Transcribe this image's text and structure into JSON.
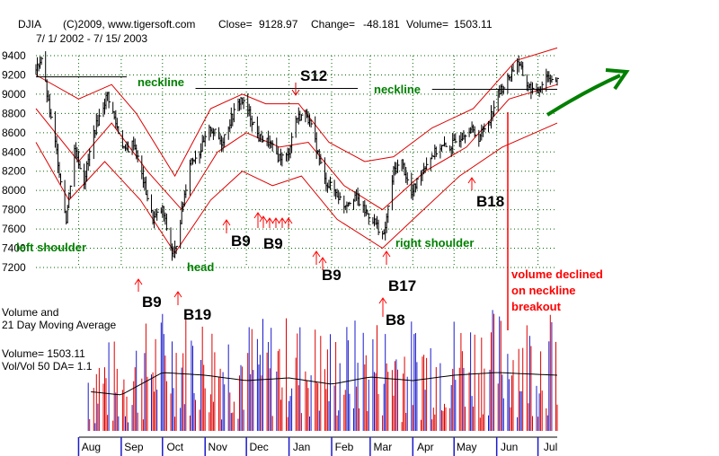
{
  "header": {
    "symbol": "DJIA",
    "copyright": "(C)2009, www.tigersoft.com",
    "close_label": "Close=",
    "close_value": "9128.97",
    "change_label": "Change=",
    "change_value": "-48.181",
    "volume_label": "Volume=",
    "volume_value": "1503.11",
    "date_range": "7/ 1/ 2002 - 7/ 15/ 2003"
  },
  "volume_panel": {
    "title_line1": "Volume and",
    "title_line2": "21 Day Moving Average",
    "volume_readout": "Volume= 1503.11",
    "ratio_readout": "Vol/Vol 50 DA= 1.1"
  },
  "colors": {
    "price_bars": "#000000",
    "bands": "#dd0000",
    "annotation_green": "#008000",
    "signal_red": "#ff0000",
    "volume_red": "#dd0000",
    "volume_blue": "#1a1acc",
    "grid": "#006600"
  },
  "chart_data": {
    "type": "bar",
    "subtype": "ohlc-price-with-volume",
    "title": "DJIA",
    "x_range": [
      "2002-07-01",
      "2003-07-15"
    ],
    "ylim": [
      7100,
      9550
    ],
    "y_ticks": [
      7200,
      7400,
      7600,
      7800,
      8000,
      8200,
      8400,
      8600,
      8800,
      9000,
      9200,
      9400
    ],
    "month_labels": [
      "Aug",
      "Sep",
      "Oct",
      "Nov",
      "Dec",
      "Jan",
      "Feb",
      "Mar",
      "Apr",
      "May",
      "Jun",
      "Jul"
    ],
    "grid": true,
    "price_anchors": [
      {
        "date": "2002-07-01",
        "close": 9250
      },
      {
        "date": "2002-07-05",
        "close": 9380
      },
      {
        "date": "2002-07-10",
        "close": 8900
      },
      {
        "date": "2002-07-16",
        "close": 8400
      },
      {
        "date": "2002-07-23",
        "close": 7700
      },
      {
        "date": "2002-07-29",
        "close": 8450
      },
      {
        "date": "2002-08-05",
        "close": 8100
      },
      {
        "date": "2002-08-12",
        "close": 8600
      },
      {
        "date": "2002-08-22",
        "close": 9000
      },
      {
        "date": "2002-08-28",
        "close": 8700
      },
      {
        "date": "2002-09-04",
        "close": 8400
      },
      {
        "date": "2002-09-10",
        "close": 8500
      },
      {
        "date": "2002-09-17",
        "close": 8100
      },
      {
        "date": "2002-09-24",
        "close": 7700
      },
      {
        "date": "2002-10-01",
        "close": 7800
      },
      {
        "date": "2002-10-09",
        "close": 7290
      },
      {
        "date": "2002-10-14",
        "close": 7700
      },
      {
        "date": "2002-10-21",
        "close": 8300
      },
      {
        "date": "2002-10-28",
        "close": 8400
      },
      {
        "date": "2002-11-05",
        "close": 8650
      },
      {
        "date": "2002-11-13",
        "close": 8500
      },
      {
        "date": "2002-11-20",
        "close": 8750
      },
      {
        "date": "2002-11-27",
        "close": 8950
      },
      {
        "date": "2002-12-03",
        "close": 8800
      },
      {
        "date": "2002-12-10",
        "close": 8550
      },
      {
        "date": "2002-12-17",
        "close": 8500
      },
      {
        "date": "2002-12-24",
        "close": 8350
      },
      {
        "date": "2002-12-31",
        "close": 8350
      },
      {
        "date": "2003-01-06",
        "close": 8750
      },
      {
        "date": "2003-01-14",
        "close": 8800
      },
      {
        "date": "2003-01-20",
        "close": 8500
      },
      {
        "date": "2003-01-27",
        "close": 8100
      },
      {
        "date": "2003-02-03",
        "close": 8000
      },
      {
        "date": "2003-02-10",
        "close": 7850
      },
      {
        "date": "2003-02-18",
        "close": 7950
      },
      {
        "date": "2003-02-24",
        "close": 7800
      },
      {
        "date": "2003-03-03",
        "close": 7700
      },
      {
        "date": "2003-03-11",
        "close": 7520
      },
      {
        "date": "2003-03-18",
        "close": 8200
      },
      {
        "date": "2003-03-24",
        "close": 8300
      },
      {
        "date": "2003-03-31",
        "close": 7950
      },
      {
        "date": "2003-04-07",
        "close": 8200
      },
      {
        "date": "2003-04-14",
        "close": 8350
      },
      {
        "date": "2003-04-21",
        "close": 8450
      },
      {
        "date": "2003-04-28",
        "close": 8450
      },
      {
        "date": "2003-05-05",
        "close": 8550
      },
      {
        "date": "2003-05-12",
        "close": 8650
      },
      {
        "date": "2003-05-19",
        "close": 8550
      },
      {
        "date": "2003-05-27",
        "close": 8750
      },
      {
        "date": "2003-06-02",
        "close": 9000
      },
      {
        "date": "2003-06-09",
        "close": 9150
      },
      {
        "date": "2003-06-16",
        "close": 9350
      },
      {
        "date": "2003-06-23",
        "close": 9100
      },
      {
        "date": "2003-06-30",
        "close": 9000
      },
      {
        "date": "2003-07-07",
        "close": 9200
      },
      {
        "date": "2003-07-15",
        "close": 9129
      }
    ],
    "upper_band": [
      {
        "date": "2002-07-01",
        "value": 9200
      },
      {
        "date": "2002-08-01",
        "value": 8950
      },
      {
        "date": "2002-08-25",
        "value": 9100
      },
      {
        "date": "2002-09-12",
        "value": 8800
      },
      {
        "date": "2002-10-10",
        "value": 8150
      },
      {
        "date": "2002-11-05",
        "value": 8850
      },
      {
        "date": "2002-11-28",
        "value": 9000
      },
      {
        "date": "2002-12-15",
        "value": 8900
      },
      {
        "date": "2003-01-08",
        "value": 8900
      },
      {
        "date": "2003-01-30",
        "value": 8500
      },
      {
        "date": "2003-02-25",
        "value": 8300
      },
      {
        "date": "2003-03-18",
        "value": 8350
      },
      {
        "date": "2003-04-15",
        "value": 8650
      },
      {
        "date": "2003-05-15",
        "value": 8850
      },
      {
        "date": "2003-06-15",
        "value": 9350
      },
      {
        "date": "2003-07-15",
        "value": 9480
      }
    ],
    "lower_band": [
      {
        "date": "2002-07-01",
        "value": 8500
      },
      {
        "date": "2002-07-25",
        "value": 7900
      },
      {
        "date": "2002-08-20",
        "value": 8300
      },
      {
        "date": "2002-09-15",
        "value": 7900
      },
      {
        "date": "2002-10-10",
        "value": 7350
      },
      {
        "date": "2002-11-05",
        "value": 7900
      },
      {
        "date": "2002-11-28",
        "value": 8200
      },
      {
        "date": "2002-12-20",
        "value": 8050
      },
      {
        "date": "2003-01-10",
        "value": 8150
      },
      {
        "date": "2003-02-05",
        "value": 7700
      },
      {
        "date": "2003-03-10",
        "value": 7400
      },
      {
        "date": "2003-04-05",
        "value": 7750
      },
      {
        "date": "2003-05-05",
        "value": 8150
      },
      {
        "date": "2003-06-05",
        "value": 8450
      },
      {
        "date": "2003-07-15",
        "value": 8700
      }
    ],
    "middle_band": [
      {
        "date": "2002-07-01",
        "value": 8850
      },
      {
        "date": "2002-08-01",
        "value": 8300
      },
      {
        "date": "2002-08-25",
        "value": 8700
      },
      {
        "date": "2002-09-20",
        "value": 8200
      },
      {
        "date": "2002-10-15",
        "value": 7800
      },
      {
        "date": "2002-11-10",
        "value": 8400
      },
      {
        "date": "2002-12-01",
        "value": 8600
      },
      {
        "date": "2002-12-25",
        "value": 8450
      },
      {
        "date": "2003-01-15",
        "value": 8500
      },
      {
        "date": "2003-02-10",
        "value": 8050
      },
      {
        "date": "2003-03-10",
        "value": 7800
      },
      {
        "date": "2003-04-10",
        "value": 8200
      },
      {
        "date": "2003-05-10",
        "value": 8450
      },
      {
        "date": "2003-06-10",
        "value": 8950
      },
      {
        "date": "2003-07-15",
        "value": 9100
      }
    ],
    "necklines": [
      {
        "label": "neckline",
        "from": "2002-07-01",
        "to": "2002-09-05",
        "value": 9180
      },
      {
        "label": "",
        "from": "2002-10-25",
        "to": "2003-02-20",
        "value": 9060
      },
      {
        "label": "neckline",
        "from": "2003-04-15",
        "to": "2003-07-15",
        "value": 9050
      }
    ],
    "pattern_labels": [
      {
        "text": "left shoulder",
        "date": "2002-07-24",
        "value": 7600
      },
      {
        "text": "head",
        "date": "2002-10-10",
        "value": 7290
      },
      {
        "text": "right shoulder",
        "date": "2003-03-12",
        "value": 7520
      }
    ],
    "signals": [
      {
        "label": "S12",
        "date": "2003-01-02",
        "kind": "sell"
      },
      {
        "label": "B9",
        "date": "2002-09-03",
        "kind": "buy"
      },
      {
        "label": "B19",
        "date": "2002-10-01",
        "kind": "buy"
      },
      {
        "label": "B9",
        "date": "2002-11-15",
        "kind": "buy"
      },
      {
        "label": "B9",
        "date": "2002-12-05",
        "kind": "buy"
      },
      {
        "label": "B9",
        "date": "2003-01-10",
        "kind": "buy"
      },
      {
        "label": "B17",
        "date": "2003-02-27",
        "kind": "buy"
      },
      {
        "label": "B8",
        "date": "2003-02-25",
        "kind": "buy"
      },
      {
        "label": "B18",
        "date": "2003-05-01",
        "kind": "buy"
      }
    ],
    "annotations": [
      {
        "text": "volume declined",
        "color": "red"
      },
      {
        "text": "on neckline",
        "color": "red"
      },
      {
        "text": "breakout",
        "color": "red"
      }
    ],
    "volume": {
      "level_range": [
        1000,
        2600
      ],
      "ma_anchors": [
        {
          "date": "2002-07-01",
          "value": 1580
        },
        {
          "date": "2002-08-01",
          "value": 1450
        },
        {
          "date": "2002-09-01",
          "value": 1400
        },
        {
          "date": "2002-10-01",
          "value": 1650
        },
        {
          "date": "2002-11-01",
          "value": 1620
        },
        {
          "date": "2002-12-01",
          "value": 1560
        },
        {
          "date": "2003-01-01",
          "value": 1590
        },
        {
          "date": "2003-02-01",
          "value": 1520
        },
        {
          "date": "2003-03-01",
          "value": 1600
        },
        {
          "date": "2003-04-01",
          "value": 1560
        },
        {
          "date": "2003-05-01",
          "value": 1620
        },
        {
          "date": "2003-06-01",
          "value": 1650
        },
        {
          "date": "2003-07-15",
          "value": 1620
        }
      ]
    }
  }
}
